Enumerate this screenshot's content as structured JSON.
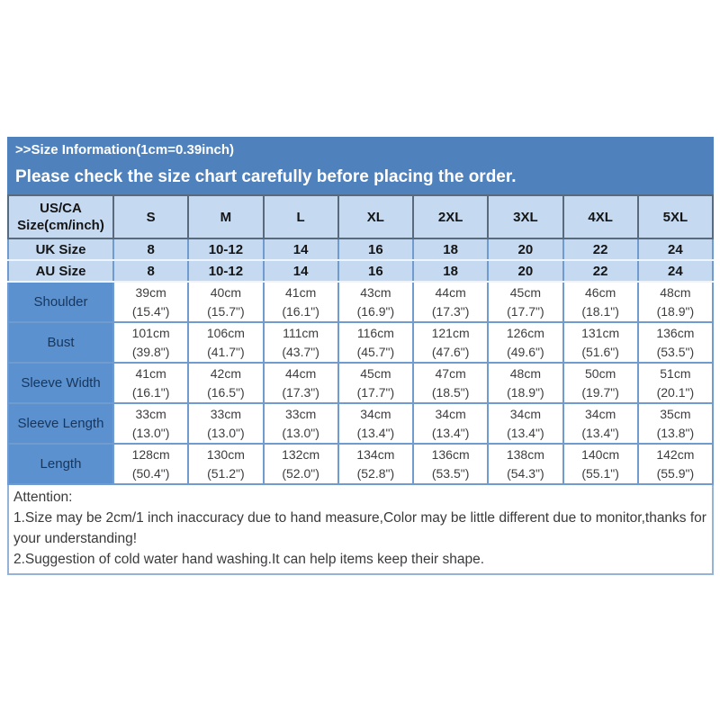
{
  "banner": {
    "title": ">>Size Information(1cm=0.39inch)",
    "warning": "Please check the size chart carefully before placing the order."
  },
  "table": {
    "corner_label": "US/CA Size(cm/inch)",
    "size_headers": [
      "S",
      "M",
      "L",
      "XL",
      "2XL",
      "3XL",
      "4XL",
      "5XL"
    ],
    "size_rows": [
      {
        "label": "UK Size",
        "values": [
          "8",
          "10-12",
          "14",
          "16",
          "18",
          "20",
          "22",
          "24"
        ]
      },
      {
        "label": "AU Size",
        "values": [
          "8",
          "10-12",
          "14",
          "16",
          "18",
          "20",
          "22",
          "24"
        ]
      }
    ],
    "measure_rows": [
      {
        "label": "Shoulder",
        "cm": [
          "39cm",
          "40cm",
          "41cm",
          "43cm",
          "44cm",
          "45cm",
          "46cm",
          "48cm"
        ],
        "inch": [
          "(15.4\")",
          "(15.7\")",
          "(16.1\")",
          "(16.9\")",
          "(17.3\")",
          "(17.7\")",
          "(18.1\")",
          "(18.9\")"
        ]
      },
      {
        "label": "Bust",
        "cm": [
          "101cm",
          "106cm",
          "111cm",
          "116cm",
          "121cm",
          "126cm",
          "131cm",
          "136cm"
        ],
        "inch": [
          "(39.8\")",
          "(41.7\")",
          "(43.7\")",
          "(45.7\")",
          "(47.6\")",
          "(49.6\")",
          "(51.6\")",
          "(53.5\")"
        ]
      },
      {
        "label": "Sleeve Width",
        "cm": [
          "41cm",
          "42cm",
          "44cm",
          "45cm",
          "47cm",
          "48cm",
          "50cm",
          "51cm"
        ],
        "inch": [
          "(16.1\")",
          "(16.5\")",
          "(17.3\")",
          "(17.7\")",
          "(18.5\")",
          "(18.9\")",
          "(19.7\")",
          "(20.1\")"
        ]
      },
      {
        "label": "Sleeve Length",
        "cm": [
          "33cm",
          "33cm",
          "33cm",
          "34cm",
          "34cm",
          "34cm",
          "34cm",
          "35cm"
        ],
        "inch": [
          "(13.0\")",
          "(13.0\")",
          "(13.0\")",
          "(13.4\")",
          "(13.4\")",
          "(13.4\")",
          "(13.4\")",
          "(13.8\")"
        ]
      },
      {
        "label": "Length",
        "cm": [
          "128cm",
          "130cm",
          "132cm",
          "134cm",
          "136cm",
          "138cm",
          "140cm",
          "142cm"
        ],
        "inch": [
          "(50.4\")",
          "(51.2\")",
          "(52.0\")",
          "(52.8\")",
          "(53.5\")",
          "(54.3\")",
          "(55.1\")",
          "(55.9\")"
        ]
      }
    ]
  },
  "attention": {
    "title": "Attention:",
    "notes": [
      "1.Size may be 2cm/1 inch inaccuracy due to hand measure,Color may be little different due to monitor,thanks for your understanding!",
      "2.Suggestion of cold water hand washing.It can help items keep their shape."
    ]
  },
  "colors": {
    "banner_blue": "#4f81bd",
    "light_blue_cell": "#c5d9f1",
    "label_blue_cell": "#5b91cf",
    "border_blue": "#6f9bce",
    "attention_border": "#95b3d7",
    "banner_text": "#ffffff",
    "label_text": "#17365d"
  }
}
